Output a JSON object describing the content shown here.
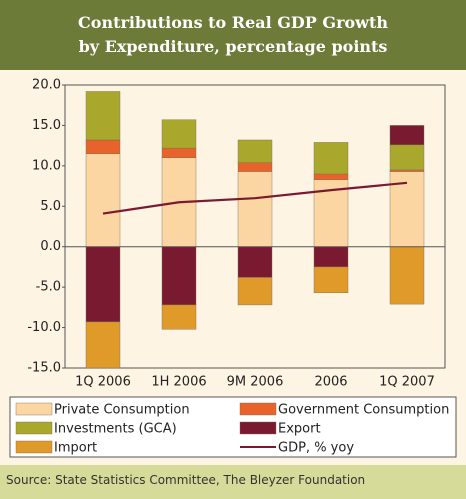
{
  "chart_data": {
    "type": "bar",
    "title": [
      "Contributions to Real GDP Growth",
      "by Expenditure, percentage points"
    ],
    "categories": [
      "1Q 2006",
      "1H 2006",
      "9M 2006",
      "2006",
      "1Q 2007"
    ],
    "series": [
      {
        "name": "Private Consumption",
        "color": "#fbd6a3",
        "values": [
          11.5,
          11.0,
          9.3,
          8.3,
          9.3
        ]
      },
      {
        "name": "Government Consumption",
        "color": "#e8632b",
        "values": [
          1.7,
          1.2,
          1.1,
          0.7,
          0.2
        ]
      },
      {
        "name": "Investments (GCA)",
        "color": "#a9a82c",
        "values": [
          6.0,
          3.5,
          2.8,
          3.9,
          3.1
        ]
      },
      {
        "name": "Export",
        "color": "#7a1a30",
        "values": [
          -9.3,
          -7.2,
          -3.8,
          -2.5,
          2.4
        ]
      },
      {
        "name": "Import",
        "color": "#e09a2a",
        "values": [
          -5.7,
          -3.0,
          -3.4,
          -3.2,
          -7.1
        ]
      },
      {
        "name": "GDP, % yoy",
        "color": "#7a1a30",
        "type": "line",
        "values": [
          4.1,
          5.5,
          6.0,
          7.0,
          7.9
        ]
      }
    ],
    "ylim": [
      -15,
      20
    ],
    "yticks": [
      {
        "value": -15,
        "label": "-15.0"
      },
      {
        "value": -10,
        "label": "-10.0"
      },
      {
        "value": -5,
        "label": "-5.0"
      },
      {
        "value": 0,
        "label": "0.0"
      },
      {
        "value": 5,
        "label": "5.0"
      },
      {
        "value": 10,
        "label": "10.0"
      },
      {
        "value": 15,
        "label": "15.0"
      },
      {
        "value": 20,
        "label": "20.0"
      }
    ],
    "source": "Source: State Statistics Committee, The Bleyzer Foundation"
  }
}
